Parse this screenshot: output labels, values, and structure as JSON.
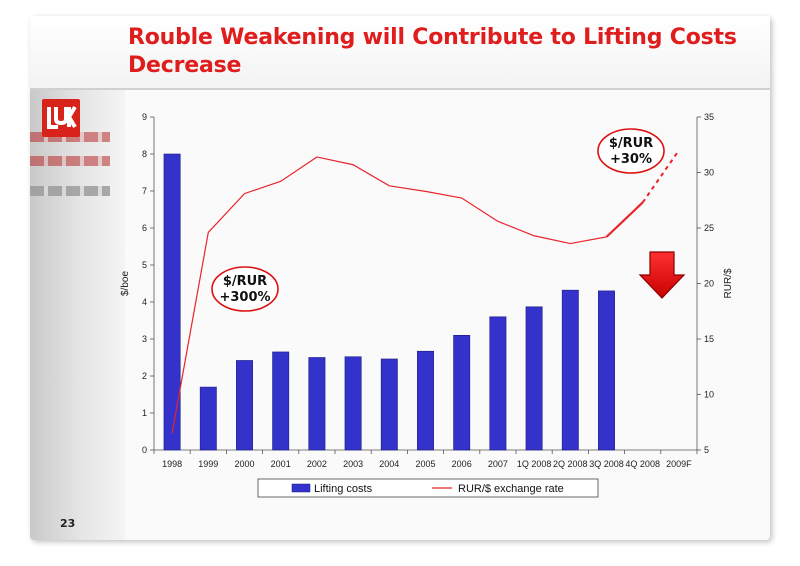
{
  "slide": {
    "title_line1": "Rouble Weakening will Contribute to Lifting Costs",
    "title_line2": "Decrease",
    "page_number": "23",
    "accent_color": "#e01d1d",
    "logo_icon": "lukoil-logo-icon"
  },
  "chart_data": {
    "type": "bar",
    "categories": [
      "1998",
      "1999",
      "2000",
      "2001",
      "2002",
      "2003",
      "2004",
      "2005",
      "2006",
      "2007",
      "1Q 2008",
      "2Q 2008",
      "3Q 2008",
      "4Q 2008",
      "2009F"
    ],
    "series": [
      {
        "name": "Lifting costs",
        "type": "bar",
        "axis": "left",
        "color": "#3333cc",
        "values": [
          8.0,
          1.7,
          2.42,
          2.65,
          2.5,
          2.52,
          2.46,
          2.67,
          3.1,
          3.6,
          3.87,
          4.32,
          4.3,
          null,
          null
        ]
      },
      {
        "name": "RUR/$ exchange rate",
        "type": "line",
        "axis": "right",
        "color": "#e8242b",
        "values": [
          6.5,
          24.6,
          28.1,
          29.2,
          31.4,
          30.7,
          28.8,
          28.3,
          27.7,
          25.6,
          24.3,
          23.6,
          24.2,
          27.3,
          32.0
        ],
        "dashed_from_index": 13
      }
    ],
    "ylabel": "$/boe",
    "y2label": "RUR/$",
    "ylim": [
      0,
      9
    ],
    "y2lim": [
      5,
      35
    ],
    "yticks": [
      0,
      1,
      2,
      3,
      4,
      5,
      6,
      7,
      8,
      9
    ],
    "y2ticks": [
      5,
      10,
      15,
      20,
      25,
      30,
      35
    ],
    "grid": false,
    "legend_position": "bottom",
    "annotations": [
      {
        "id": "callout-1",
        "line1": "$/RUR",
        "line2": "+300%"
      },
      {
        "id": "callout-2",
        "line1": "$/RUR",
        "line2": "+30%"
      }
    ],
    "arrow": {
      "direction": "down",
      "color": "#e01d1d"
    }
  }
}
